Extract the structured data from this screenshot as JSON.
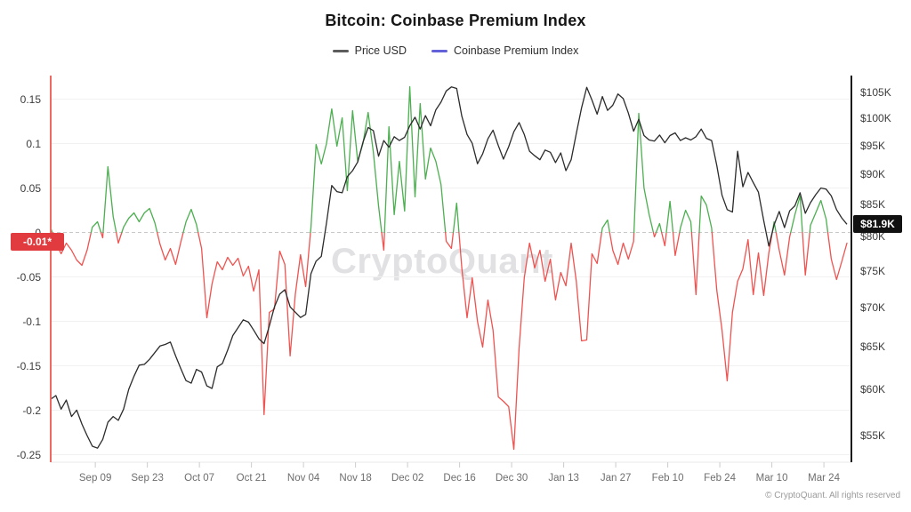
{
  "title": "Bitcoin: Coinbase Premium Index",
  "legend": {
    "items": [
      {
        "label": "Price USD",
        "color": "#5c5c5c"
      },
      {
        "label": "Coinbase Premium Index",
        "color": "#6361d9"
      }
    ]
  },
  "watermark": "CryptoQuant",
  "footer": "© CryptoQuant. All rights reserved",
  "chart_data": {
    "type": "line",
    "x_axis": {
      "tick_labels": [
        "Sep 09",
        "Sep 23",
        "Oct 07",
        "Oct 21",
        "Nov 04",
        "Nov 18",
        "Dec 02",
        "Dec 16",
        "Dec 30",
        "Jan 13",
        "Jan 27",
        "Feb 10",
        "Feb 24",
        "Mar 10",
        "Mar 24"
      ],
      "tick_days": [
        12,
        26,
        40,
        54,
        68,
        82,
        96,
        110,
        124,
        138,
        152,
        166,
        180,
        194,
        208
      ],
      "span_days": 215.4,
      "point_interval_days": 1.4
    },
    "left_axis": {
      "ticks": [
        0.15,
        0.1,
        0.05,
        0,
        -0.05,
        -0.1,
        -0.15,
        -0.2,
        -0.25
      ],
      "tick_labels": [
        "0.15",
        "0.1",
        "0.05",
        "0",
        "-0.05",
        "-0.1",
        "-0.15",
        "-0.2",
        "-0.25"
      ],
      "current_badge": {
        "label": "-0.01*",
        "value": -0.01,
        "color": "#e23b3f"
      }
    },
    "right_axis": {
      "scale": "log",
      "ticks": [
        105,
        100,
        95,
        90,
        85,
        80,
        75,
        70,
        65,
        60,
        55
      ],
      "tick_labels": [
        "$105K",
        "$100K",
        "$95K",
        "$90K",
        "$85K",
        "$80K",
        "$75K",
        "$70K",
        "$65K",
        "$60K",
        "$55K"
      ],
      "current_badge": {
        "label": "$81.9K",
        "value": 81.9,
        "color": "#111111"
      }
    },
    "zero_line": {
      "value": 0,
      "style": "dashed"
    },
    "series": [
      {
        "name": "Coinbase Premium Index",
        "axis": "left",
        "positive_color": "#4caf50",
        "negative_color": "#ef5350",
        "values": [
          0.005,
          -0.012,
          -0.024,
          -0.012,
          -0.02,
          -0.031,
          -0.037,
          -0.02,
          0.006,
          0.012,
          -0.006,
          0.074,
          0.018,
          -0.012,
          0.006,
          0.016,
          0.022,
          0.012,
          0.022,
          0.027,
          0.011,
          -0.013,
          -0.031,
          -0.018,
          -0.036,
          -0.011,
          0.012,
          0.026,
          0.009,
          -0.018,
          -0.096,
          -0.058,
          -0.033,
          -0.042,
          -0.028,
          -0.037,
          -0.029,
          -0.049,
          -0.038,
          -0.066,
          -0.042,
          -0.205,
          -0.09,
          -0.086,
          -0.021,
          -0.036,
          -0.139,
          -0.07,
          -0.025,
          -0.061,
          0.005,
          0.099,
          0.077,
          0.1,
          0.139,
          0.097,
          0.129,
          0.047,
          0.137,
          0.08,
          0.1,
          0.135,
          0.09,
          0.03,
          -0.02,
          0.119,
          0.02,
          0.08,
          0.024,
          0.164,
          0.04,
          0.145,
          0.06,
          0.095,
          0.08,
          0.054,
          -0.01,
          -0.018,
          0.033,
          -0.04,
          -0.096,
          -0.051,
          -0.1,
          -0.129,
          -0.076,
          -0.11,
          -0.185,
          -0.19,
          -0.196,
          -0.244,
          -0.13,
          -0.051,
          -0.012,
          -0.04,
          -0.02,
          -0.055,
          -0.03,
          -0.076,
          -0.045,
          -0.06,
          -0.012,
          -0.055,
          -0.122,
          -0.121,
          -0.024,
          -0.035,
          0.005,
          0.014,
          -0.02,
          -0.036,
          -0.012,
          -0.03,
          -0.01,
          0.134,
          0.05,
          0.02,
          -0.005,
          0.01,
          -0.015,
          0.035,
          -0.026,
          0.005,
          0.025,
          0.012,
          -0.07,
          0.041,
          0.031,
          0.005,
          -0.065,
          -0.11,
          -0.167,
          -0.09,
          -0.055,
          -0.041,
          -0.008,
          -0.07,
          -0.023,
          -0.071,
          -0.023,
          0.012,
          -0.02,
          -0.048,
          -0.005,
          0.02,
          0.041,
          -0.048,
          0.008,
          0.022,
          0.036,
          0.015,
          -0.03,
          -0.053,
          -0.033,
          -0.012
        ]
      },
      {
        "name": "Price USD",
        "axis": "right",
        "unit": "thousand USD",
        "color": "#2b2b2b",
        "values": [
          58.9,
          59.3,
          57.8,
          58.8,
          57.0,
          57.7,
          56.2,
          55.0,
          53.9,
          53.7,
          54.6,
          56.4,
          57.0,
          56.6,
          57.8,
          60.0,
          61.5,
          62.8,
          62.9,
          63.5,
          64.3,
          65.1,
          65.3,
          65.6,
          63.9,
          62.4,
          61.0,
          60.7,
          62.3,
          62.0,
          60.4,
          60.1,
          62.6,
          63.0,
          64.6,
          66.4,
          67.4,
          68.4,
          68.1,
          67.1,
          66.0,
          65.4,
          67.6,
          70.1,
          71.8,
          72.4,
          70.1,
          69.4,
          68.7,
          69.1,
          74.6,
          76.4,
          77.1,
          82.1,
          88.1,
          87.1,
          86.9,
          89.6,
          90.6,
          92.1,
          95.6,
          98.3,
          97.7,
          93.1,
          95.9,
          94.7,
          96.6,
          95.9,
          96.5,
          98.6,
          100.2,
          98.0,
          100.5,
          98.6,
          101.6,
          103.1,
          105.3,
          106.1,
          105.8,
          100.4,
          97.0,
          95.4,
          91.8,
          93.5,
          96.2,
          97.8,
          95.0,
          92.6,
          94.8,
          97.5,
          99.2,
          97.0,
          94.0,
          93.2,
          92.5,
          94.2,
          93.8,
          92.0,
          93.7,
          90.6,
          92.5,
          97.2,
          102.0,
          106.0,
          103.5,
          100.8,
          104.2,
          101.5,
          102.5,
          104.7,
          103.8,
          101.0,
          97.6,
          99.8,
          96.8,
          96.0,
          95.8,
          96.9,
          95.5,
          96.8,
          97.3,
          95.9,
          96.4,
          96.0,
          96.6,
          98.0,
          96.3,
          95.9,
          91.5,
          86.5,
          84.2,
          83.8,
          94.0,
          87.9,
          90.3,
          88.6,
          87.0,
          82.5,
          78.6,
          81.8,
          83.9,
          81.4,
          84.0,
          84.8,
          86.9,
          83.6,
          85.3,
          86.6,
          87.7,
          87.5,
          86.4,
          84.2,
          82.9,
          81.9
        ]
      }
    ],
    "colors": {
      "grid": "#f1f1f1",
      "zero_dash": "#c8c8c8",
      "left_axis_line": "#ee6a60",
      "right_axis_line": "#1a1a1a"
    }
  }
}
